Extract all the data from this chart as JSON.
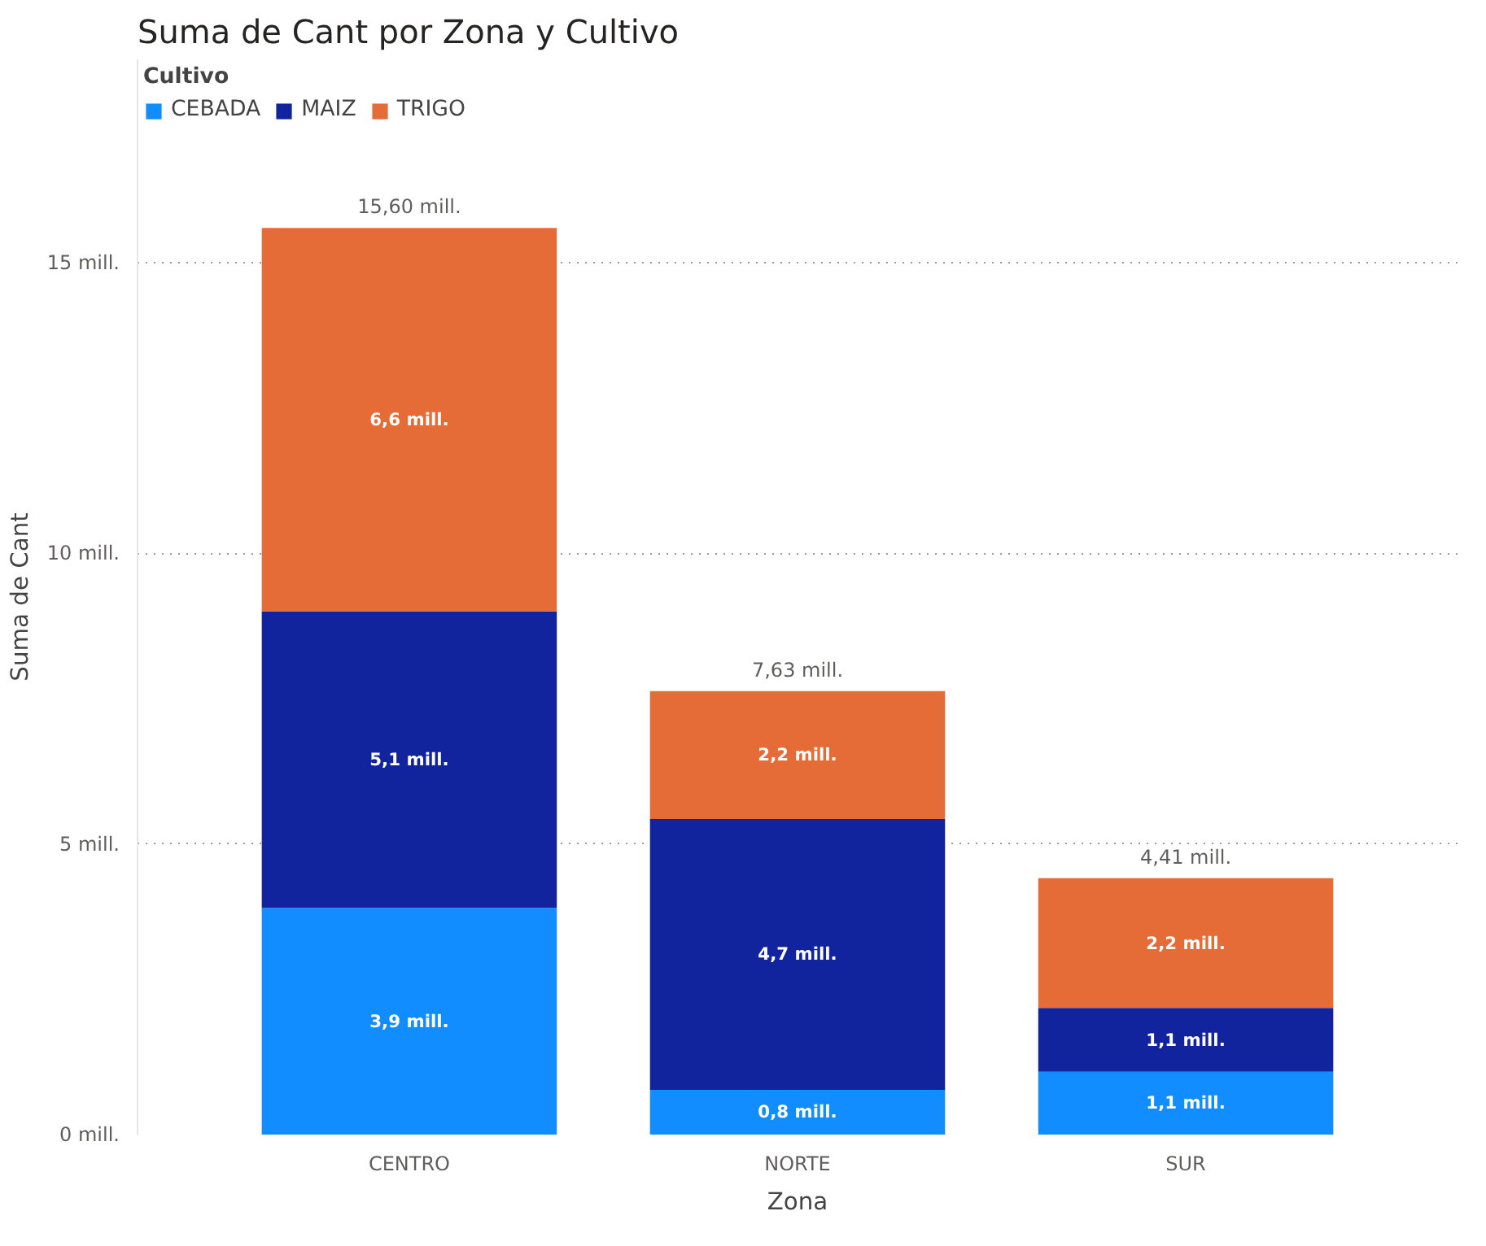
{
  "chart_data": {
    "type": "bar",
    "title": "Suma de Cant por Zona y Cultivo",
    "xlabel": "Zona",
    "ylabel": "Suma de Cant",
    "legend_title": "Cultivo",
    "legend": "top left",
    "stacked": true,
    "grid": "y",
    "categories": [
      "CENTRO",
      "NORTE",
      "SUR"
    ],
    "series": [
      {
        "name": "CEBADA",
        "color": "#118dff",
        "values": [
          3.9,
          0.77,
          1.08
        ],
        "value_labels": [
          "3,9 mill.",
          "0,8 mill.",
          "1,1 mill."
        ]
      },
      {
        "name": "MAIZ",
        "color": "#12239e",
        "values": [
          5.1,
          4.66,
          1.1
        ],
        "value_labels": [
          "5,1 mill.",
          "4,7 mill.",
          "1,1 mill."
        ]
      },
      {
        "name": "TRIGO",
        "color": "#e66c37",
        "values": [
          6.6,
          2.2,
          2.23
        ],
        "value_labels": [
          "6,6 mill.",
          "2,2 mill.",
          "2,2 mill."
        ]
      }
    ],
    "totals": [
      "15,60 mill.",
      "7,63 mill.",
      "4,41 mill."
    ],
    "ylim": [
      0,
      18.5
    ],
    "yticks": [
      {
        "value": 0,
        "label": "0 mill."
      },
      {
        "value": 5,
        "label": "5 mill."
      },
      {
        "value": 10,
        "label": "10 mill."
      },
      {
        "value": 15,
        "label": "15 mill."
      }
    ]
  }
}
